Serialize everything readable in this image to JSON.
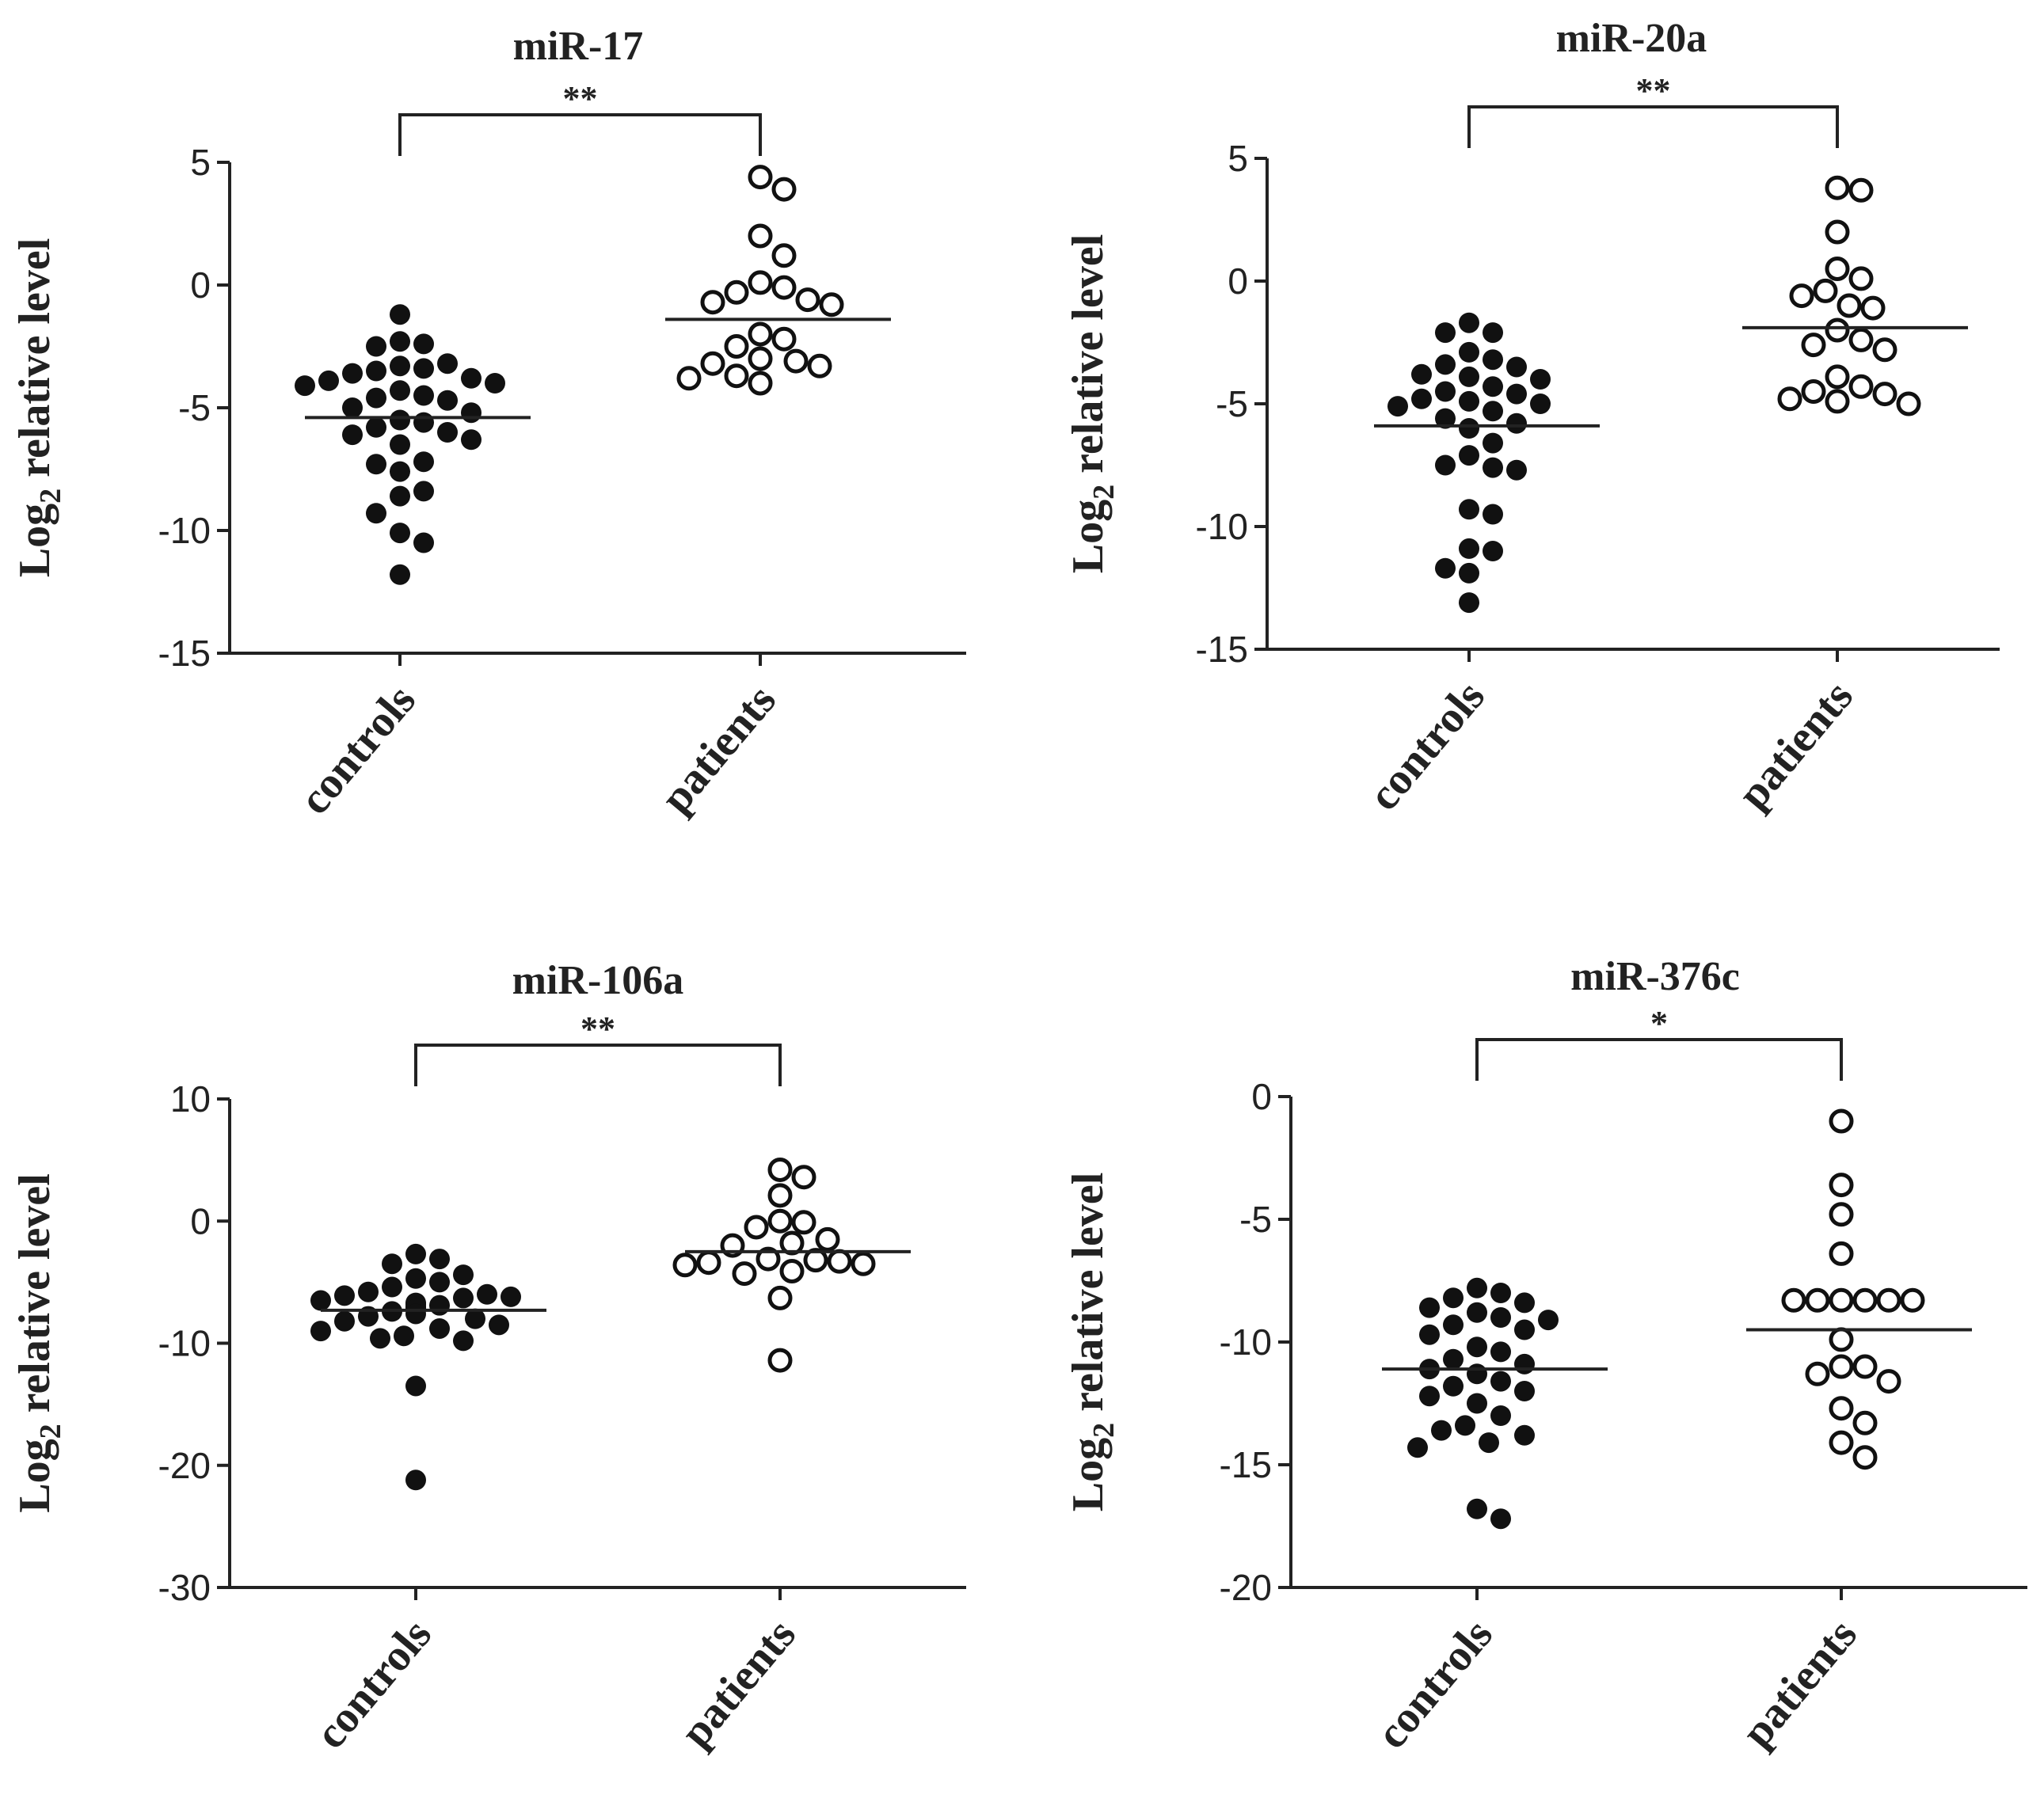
{
  "chart_data": [
    {
      "type": "scatter",
      "title": "miR-17",
      "ylabel_main": "Log",
      "ylabel_sub": "2",
      "ylabel_rest": " relative level",
      "ylim": [
        -15,
        5
      ],
      "yticks": [
        5,
        0,
        -5,
        -10,
        -15
      ],
      "ytick_labels": [
        "5",
        "0",
        "-5",
        "-10",
        "-15"
      ],
      "categories": [
        "controls",
        "patients"
      ],
      "significance": "**",
      "series": [
        {
          "name": "controls",
          "style": "filled",
          "mean": -5.4,
          "values": [
            -1.2,
            -2.3,
            -2.5,
            -2.4,
            -3.2,
            -3.3,
            -3.4,
            -3.5,
            -3.6,
            -3.8,
            -3.9,
            -4.0,
            -4.1,
            -4.3,
            -4.5,
            -4.6,
            -4.7,
            -5.0,
            -5.2,
            -5.5,
            -5.6,
            -5.8,
            -6.0,
            -6.1,
            -6.3,
            -6.5,
            -7.2,
            -7.3,
            -7.6,
            -8.4,
            -8.6,
            -9.3,
            -10.1,
            -10.5,
            -11.8
          ]
        },
        {
          "name": "patients",
          "style": "open",
          "mean": -1.4,
          "values": [
            4.4,
            3.9,
            2.0,
            1.2,
            0.1,
            -0.1,
            -0.3,
            -0.6,
            -0.7,
            -0.8,
            -2.0,
            -2.2,
            -2.5,
            -3.0,
            -3.1,
            -3.2,
            -3.3,
            -3.7,
            -3.8,
            -4.0
          ]
        }
      ]
    },
    {
      "type": "scatter",
      "title": "miR-20a",
      "ylabel_main": "Log",
      "ylabel_sub": "2",
      "ylabel_rest": " relative level",
      "ylim": [
        -15,
        5
      ],
      "yticks": [
        5,
        0,
        -5,
        -10,
        -15
      ],
      "ytick_labels": [
        "5",
        "0",
        "-5",
        "-10",
        "-15"
      ],
      "categories": [
        "controls",
        "patients"
      ],
      "significance": "**",
      "series": [
        {
          "name": "controls",
          "style": "filled",
          "mean": -5.9,
          "values": [
            -1.7,
            -2.1,
            -2.1,
            -2.9,
            -3.2,
            -3.4,
            -3.5,
            -3.8,
            -3.9,
            -4.0,
            -4.3,
            -4.5,
            -4.6,
            -4.8,
            -4.9,
            -5.0,
            -5.1,
            -5.3,
            -5.6,
            -5.8,
            -6.0,
            -6.6,
            -7.1,
            -7.5,
            -7.6,
            -7.7,
            -9.3,
            -9.5,
            -10.9,
            -11.0,
            -11.7,
            -11.9,
            -13.1
          ]
        },
        {
          "name": "patients",
          "style": "open",
          "mean": -1.9,
          "values": [
            3.8,
            3.7,
            2.0,
            0.5,
            0.1,
            -0.4,
            -0.6,
            -1.0,
            -1.1,
            -2.0,
            -2.4,
            -2.6,
            -2.8,
            -3.9,
            -4.3,
            -4.5,
            -4.6,
            -4.8,
            -4.9,
            -5.0
          ]
        }
      ]
    },
    {
      "type": "scatter",
      "title": "miR-106a",
      "ylabel_main": "Log",
      "ylabel_sub": "2",
      "ylabel_rest": " relative level",
      "ylim": [
        -30,
        10
      ],
      "yticks": [
        10,
        0,
        -10,
        -20,
        -30
      ],
      "ytick_labels": [
        "10",
        "0",
        "-10",
        "-20",
        "-30"
      ],
      "categories": [
        "controls",
        "patients"
      ],
      "significance": "**",
      "series": [
        {
          "name": "controls",
          "style": "filled",
          "mean": -7.3,
          "values": [
            -2.7,
            -3.1,
            -3.5,
            -4.4,
            -4.7,
            -5.0,
            -5.4,
            -5.8,
            -6.0,
            -6.1,
            -6.2,
            -6.3,
            -6.5,
            -6.7,
            -6.8,
            -6.9,
            -7.0,
            -7.1,
            -7.2,
            -7.4,
            -7.6,
            -7.8,
            -8.0,
            -8.2,
            -8.5,
            -8.8,
            -9.0,
            -9.4,
            -9.6,
            -9.8,
            -13.5,
            -21.2
          ]
        },
        {
          "name": "patients",
          "style": "open",
          "mean": -2.5,
          "values": [
            4.2,
            3.6,
            2.1,
            0.0,
            -0.1,
            -0.5,
            -1.5,
            -1.8,
            -2.0,
            -3.1,
            -3.2,
            -3.3,
            -3.4,
            -3.5,
            -3.6,
            -4.1,
            -4.3,
            -6.3,
            -11.4
          ]
        }
      ]
    },
    {
      "type": "scatter",
      "title": "miR-376c",
      "ylabel_main": "Log",
      "ylabel_sub": "2",
      "ylabel_rest": " relative level",
      "ylim": [
        -20,
        0
      ],
      "yticks": [
        0,
        -5,
        -10,
        -15,
        -20
      ],
      "ytick_labels": [
        "0",
        "-5",
        "-10",
        "-15",
        "-20"
      ],
      "categories": [
        "controls",
        "patients"
      ],
      "significance": "*",
      "series": [
        {
          "name": "controls",
          "style": "filled",
          "mean": -11.1,
          "values": [
            -7.8,
            -8.0,
            -8.2,
            -8.4,
            -8.6,
            -8.8,
            -9.0,
            -9.1,
            -9.3,
            -9.5,
            -9.7,
            -10.2,
            -10.4,
            -10.7,
            -10.9,
            -11.1,
            -11.3,
            -11.6,
            -11.8,
            -12.0,
            -12.2,
            -12.5,
            -13.0,
            -13.4,
            -13.6,
            -13.8,
            -14.1,
            -14.3,
            -16.8,
            -17.2
          ]
        },
        {
          "name": "patients",
          "style": "open",
          "mean": -9.5,
          "values": [
            -1.0,
            -3.6,
            -4.8,
            -6.4,
            -8.3,
            -8.3,
            -8.3,
            -8.3,
            -8.3,
            -8.3,
            -9.9,
            -11.0,
            -11.0,
            -11.3,
            -11.6,
            -12.7,
            -13.3,
            -14.1,
            -14.7
          ]
        }
      ]
    }
  ]
}
